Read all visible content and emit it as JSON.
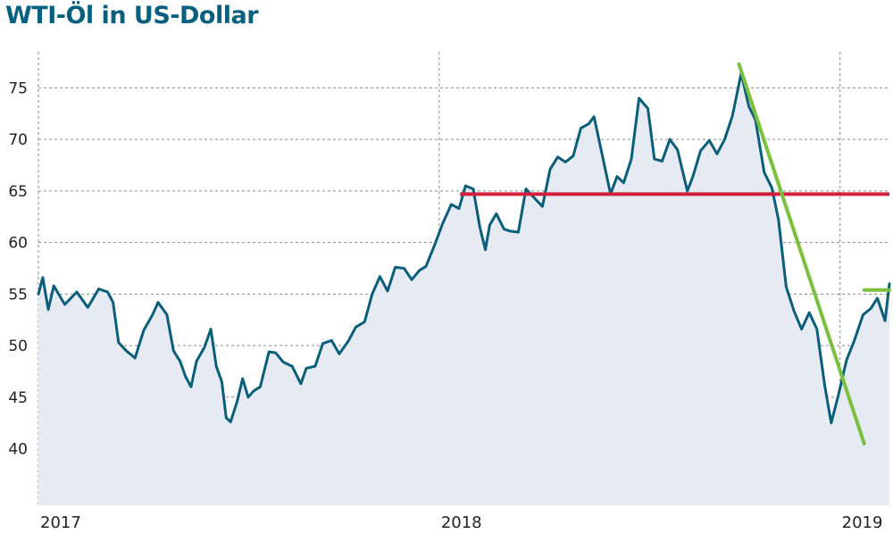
{
  "title": "WTI-Öl in US-Dollar",
  "colors": {
    "title": "#08607e",
    "line": "#0b5e7a",
    "area": "#e6ebf3",
    "resistance": "#d0203a",
    "trend": "#7bbf3f",
    "grid": "#8a8a8a"
  },
  "chart_data": {
    "type": "line",
    "title": "WTI-Öl in US-Dollar",
    "xlabel": "",
    "ylabel": "",
    "x_tick_labels": [
      "2017",
      "2018",
      "2019"
    ],
    "y_ticks": [
      40,
      45,
      50,
      55,
      60,
      65,
      70,
      75
    ],
    "xlim": [
      "2017-01-01",
      "2019-02-15"
    ],
    "ylim": [
      34.5,
      78.5
    ],
    "grid": true,
    "grid_style": "dashed",
    "area_fill": true,
    "series": [
      {
        "values": [
          [
            "2017-01-01",
            55.0
          ],
          [
            "2017-01-05",
            56.6
          ],
          [
            "2017-01-10",
            53.5
          ],
          [
            "2017-01-15",
            55.8
          ],
          [
            "2017-01-25",
            54.0
          ],
          [
            "2017-02-05",
            55.2
          ],
          [
            "2017-02-15",
            53.7
          ],
          [
            "2017-02-25",
            55.5
          ],
          [
            "2017-03-05",
            55.2
          ],
          [
            "2017-03-10",
            54.2
          ],
          [
            "2017-03-15",
            50.3
          ],
          [
            "2017-03-22",
            49.5
          ],
          [
            "2017-03-30",
            48.8
          ],
          [
            "2017-04-07",
            51.5
          ],
          [
            "2017-04-15",
            53.0
          ],
          [
            "2017-04-20",
            54.2
          ],
          [
            "2017-04-28",
            53.0
          ],
          [
            "2017-05-04",
            49.5
          ],
          [
            "2017-05-10",
            48.5
          ],
          [
            "2017-05-15",
            47.0
          ],
          [
            "2017-05-20",
            46.0
          ],
          [
            "2017-05-25",
            48.5
          ],
          [
            "2017-06-01",
            49.8
          ],
          [
            "2017-06-07",
            51.6
          ],
          [
            "2017-06-12",
            48.0
          ],
          [
            "2017-06-17",
            46.5
          ],
          [
            "2017-06-21",
            43.0
          ],
          [
            "2017-06-25",
            42.6
          ],
          [
            "2017-07-01",
            44.6
          ],
          [
            "2017-07-06",
            46.8
          ],
          [
            "2017-07-11",
            45.0
          ],
          [
            "2017-07-16",
            45.6
          ],
          [
            "2017-07-22",
            46.0
          ],
          [
            "2017-07-30",
            49.4
          ],
          [
            "2017-08-05",
            49.3
          ],
          [
            "2017-08-12",
            48.4
          ],
          [
            "2017-08-20",
            48.0
          ],
          [
            "2017-08-28",
            46.3
          ],
          [
            "2017-09-02",
            47.8
          ],
          [
            "2017-09-10",
            48.0
          ],
          [
            "2017-09-17",
            50.2
          ],
          [
            "2017-09-25",
            50.5
          ],
          [
            "2017-10-02",
            49.2
          ],
          [
            "2017-10-10",
            50.4
          ],
          [
            "2017-10-17",
            51.8
          ],
          [
            "2017-10-25",
            52.3
          ],
          [
            "2017-11-01",
            55.0
          ],
          [
            "2017-11-08",
            56.7
          ],
          [
            "2017-11-15",
            55.3
          ],
          [
            "2017-11-22",
            57.6
          ],
          [
            "2017-11-30",
            57.5
          ],
          [
            "2017-12-07",
            56.4
          ],
          [
            "2017-12-14",
            57.3
          ],
          [
            "2017-12-20",
            57.7
          ],
          [
            "2017-12-28",
            59.8
          ],
          [
            "2018-01-04",
            61.8
          ],
          [
            "2018-01-12",
            63.7
          ],
          [
            "2018-01-19",
            63.3
          ],
          [
            "2018-01-25",
            65.5
          ],
          [
            "2018-02-01",
            65.2
          ],
          [
            "2018-02-07",
            61.5
          ],
          [
            "2018-02-12",
            59.3
          ],
          [
            "2018-02-16",
            61.7
          ],
          [
            "2018-02-22",
            62.8
          ],
          [
            "2018-03-01",
            61.3
          ],
          [
            "2018-03-07",
            61.1
          ],
          [
            "2018-03-14",
            61.0
          ],
          [
            "2018-03-21",
            65.2
          ],
          [
            "2018-03-28",
            64.4
          ],
          [
            "2018-04-05",
            63.5
          ],
          [
            "2018-04-12",
            67.1
          ],
          [
            "2018-04-19",
            68.3
          ],
          [
            "2018-04-26",
            67.8
          ],
          [
            "2018-05-03",
            68.4
          ],
          [
            "2018-05-10",
            71.1
          ],
          [
            "2018-05-17",
            71.5
          ],
          [
            "2018-05-22",
            72.2
          ],
          [
            "2018-05-30",
            68.2
          ],
          [
            "2018-06-06",
            64.7
          ],
          [
            "2018-06-12",
            66.4
          ],
          [
            "2018-06-18",
            65.8
          ],
          [
            "2018-06-25",
            68.1
          ],
          [
            "2018-07-02",
            74.0
          ],
          [
            "2018-07-10",
            73.0
          ],
          [
            "2018-07-16",
            68.1
          ],
          [
            "2018-07-23",
            67.9
          ],
          [
            "2018-07-30",
            70.0
          ],
          [
            "2018-08-06",
            69.0
          ],
          [
            "2018-08-15",
            65.0
          ],
          [
            "2018-08-20",
            66.4
          ],
          [
            "2018-08-27",
            68.9
          ],
          [
            "2018-09-04",
            69.9
          ],
          [
            "2018-09-11",
            68.6
          ],
          [
            "2018-09-18",
            70.0
          ],
          [
            "2018-09-25",
            72.3
          ],
          [
            "2018-10-03",
            76.4
          ],
          [
            "2018-10-10",
            73.2
          ],
          [
            "2018-10-16",
            71.9
          ],
          [
            "2018-10-24",
            66.8
          ],
          [
            "2018-10-31",
            65.3
          ],
          [
            "2018-11-06",
            62.2
          ],
          [
            "2018-11-13",
            55.7
          ],
          [
            "2018-11-20",
            53.4
          ],
          [
            "2018-11-27",
            51.6
          ],
          [
            "2018-12-04",
            53.2
          ],
          [
            "2018-12-11",
            51.6
          ],
          [
            "2018-12-18",
            46.2
          ],
          [
            "2018-12-24",
            42.5
          ],
          [
            "2018-12-31",
            45.4
          ],
          [
            "2019-01-07",
            48.6
          ],
          [
            "2019-01-14",
            50.5
          ],
          [
            "2019-01-22",
            53.0
          ],
          [
            "2019-01-29",
            53.6
          ],
          [
            "2019-02-04",
            54.6
          ],
          [
            "2019-02-11",
            52.4
          ],
          [
            "2019-02-15",
            56.0
          ]
        ]
      }
    ],
    "annotations": [
      {
        "type": "hline",
        "color": "#d0203a",
        "y": 64.7,
        "x_start": "2018-01-20",
        "x_end": "2019-02-15"
      },
      {
        "type": "segment",
        "color": "#7bbf3f",
        "points": [
          [
            "2018-10-01",
            77.3
          ],
          [
            "2019-01-23",
            40.5
          ]
        ]
      },
      {
        "type": "segment",
        "color": "#7bbf3f",
        "points": [
          [
            "2019-01-23",
            55.4
          ],
          [
            "2019-02-15",
            55.4
          ]
        ]
      }
    ]
  }
}
